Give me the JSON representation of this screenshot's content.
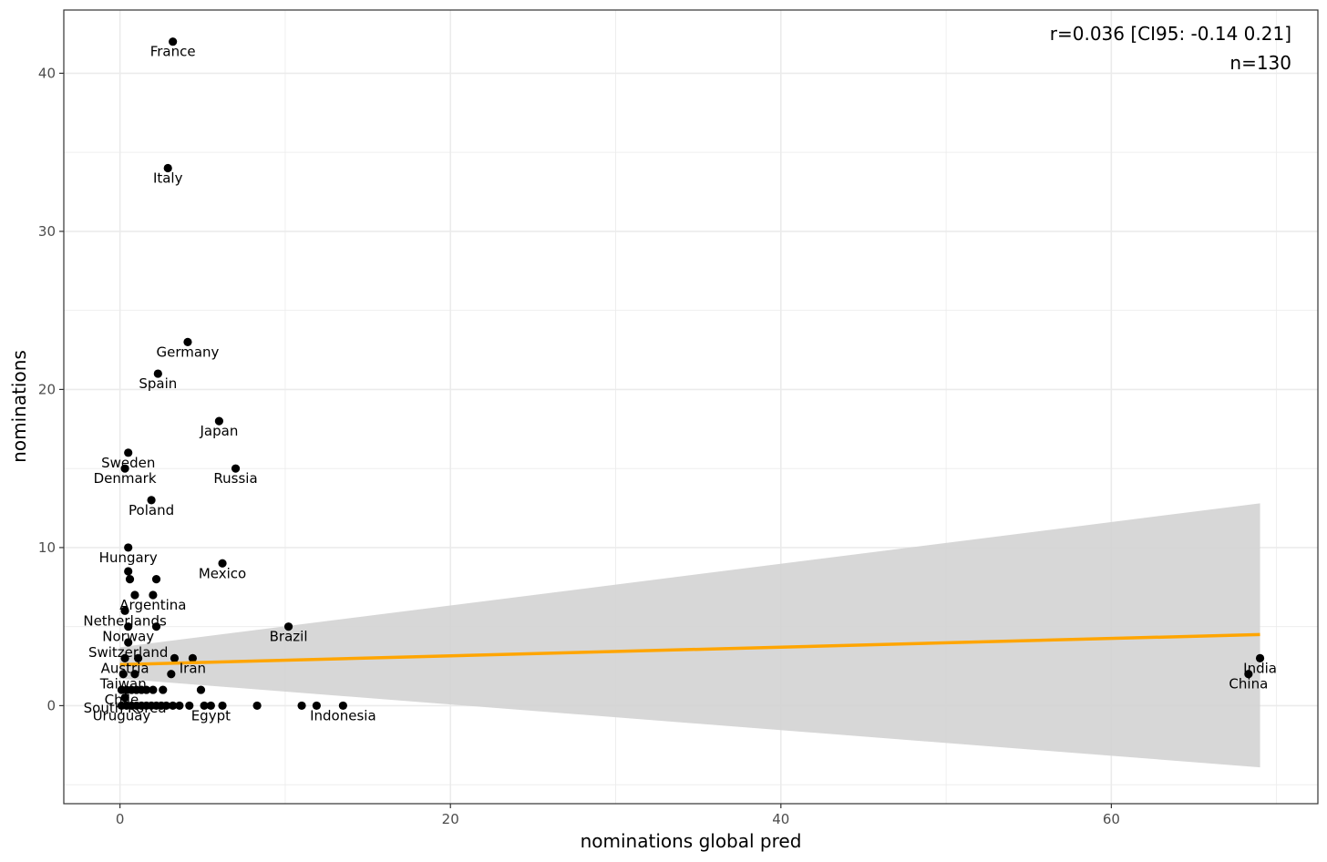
{
  "chart_data": {
    "type": "scatter",
    "xlabel": "nominations global pred",
    "ylabel": "nominations",
    "xlim": [
      -3.4,
      72.5
    ],
    "ylim": [
      -6.2,
      44.0
    ],
    "x_ticks": [
      0,
      20,
      40,
      60
    ],
    "y_ticks": [
      0,
      10,
      20,
      30,
      40
    ],
    "grid": true,
    "annotations": [
      "r=0.036 [CI95: -0.14 0.21]",
      "n=130"
    ],
    "regression": {
      "x": [
        0,
        69.0
      ],
      "y": [
        2.6,
        4.5
      ],
      "band_lower": [
        1.7,
        -3.9
      ],
      "band_upper": [
        3.7,
        12.8
      ],
      "line_color": "#ffa500",
      "band_color": "#d3d3d3"
    },
    "points": [
      {
        "x": 3.2,
        "y": 42,
        "label": "France"
      },
      {
        "x": 2.9,
        "y": 34,
        "label": "Italy"
      },
      {
        "x": 4.1,
        "y": 23,
        "label": "Germany"
      },
      {
        "x": 2.3,
        "y": 21,
        "label": "Spain"
      },
      {
        "x": 6.0,
        "y": 18,
        "label": "Japan"
      },
      {
        "x": 0.5,
        "y": 16,
        "label": "Sweden"
      },
      {
        "x": 0.3,
        "y": 15,
        "label": "Denmark"
      },
      {
        "x": 7.0,
        "y": 15,
        "label": "Russia"
      },
      {
        "x": 1.9,
        "y": 13,
        "label": "Poland"
      },
      {
        "x": 0.5,
        "y": 10,
        "label": "Hungary"
      },
      {
        "x": 6.2,
        "y": 9,
        "label": "Mexico"
      },
      {
        "x": 0.5,
        "y": 8.5,
        "label": ""
      },
      {
        "x": 0.6,
        "y": 8,
        "label": ""
      },
      {
        "x": 2.2,
        "y": 8,
        "label": ""
      },
      {
        "x": 2.0,
        "y": 7,
        "label": "Argentina"
      },
      {
        "x": 0.9,
        "y": 7,
        "label": ""
      },
      {
        "x": 0.3,
        "y": 6,
        "label": "Netherlands"
      },
      {
        "x": 0.5,
        "y": 5,
        "label": "Norway"
      },
      {
        "x": 2.2,
        "y": 5,
        "label": ""
      },
      {
        "x": 10.2,
        "y": 5,
        "label": "Brazil"
      },
      {
        "x": 0.5,
        "y": 4,
        "label": "Switzerland"
      },
      {
        "x": 0.3,
        "y": 3,
        "label": "Austria"
      },
      {
        "x": 1.1,
        "y": 3,
        "label": ""
      },
      {
        "x": 3.3,
        "y": 3,
        "label": ""
      },
      {
        "x": 4.4,
        "y": 3,
        "label": "Iran"
      },
      {
        "x": 69.0,
        "y": 3,
        "label": "India"
      },
      {
        "x": 0.2,
        "y": 2,
        "label": "Taiwan"
      },
      {
        "x": 3.1,
        "y": 2,
        "label": ""
      },
      {
        "x": 0.9,
        "y": 2,
        "label": ""
      },
      {
        "x": 68.3,
        "y": 2,
        "label": "China"
      },
      {
        "x": 0.1,
        "y": 1,
        "label": "Chile"
      },
      {
        "x": 0.4,
        "y": 1,
        "label": ""
      },
      {
        "x": 0.7,
        "y": 1,
        "label": ""
      },
      {
        "x": 1.0,
        "y": 1,
        "label": ""
      },
      {
        "x": 1.3,
        "y": 1,
        "label": ""
      },
      {
        "x": 1.6,
        "y": 1,
        "label": ""
      },
      {
        "x": 2.0,
        "y": 1,
        "label": ""
      },
      {
        "x": 2.6,
        "y": 1,
        "label": ""
      },
      {
        "x": 4.9,
        "y": 1,
        "label": ""
      },
      {
        "x": 0.3,
        "y": 0.5,
        "label": "South Korea"
      },
      {
        "x": 0.1,
        "y": 0,
        "label": "Uruguay"
      },
      {
        "x": 0.4,
        "y": 0,
        "label": ""
      },
      {
        "x": 0.7,
        "y": 0,
        "label": ""
      },
      {
        "x": 1.0,
        "y": 0,
        "label": ""
      },
      {
        "x": 1.3,
        "y": 0,
        "label": ""
      },
      {
        "x": 1.6,
        "y": 0,
        "label": ""
      },
      {
        "x": 1.9,
        "y": 0,
        "label": ""
      },
      {
        "x": 2.2,
        "y": 0,
        "label": ""
      },
      {
        "x": 2.5,
        "y": 0,
        "label": ""
      },
      {
        "x": 2.8,
        "y": 0,
        "label": ""
      },
      {
        "x": 3.2,
        "y": 0,
        "label": ""
      },
      {
        "x": 3.6,
        "y": 0,
        "label": ""
      },
      {
        "x": 4.2,
        "y": 0,
        "label": ""
      },
      {
        "x": 5.1,
        "y": 0,
        "label": ""
      },
      {
        "x": 5.5,
        "y": 0,
        "label": "Egypt"
      },
      {
        "x": 6.2,
        "y": 0,
        "label": ""
      },
      {
        "x": 8.3,
        "y": 0,
        "label": ""
      },
      {
        "x": 11.0,
        "y": 0,
        "label": ""
      },
      {
        "x": 11.9,
        "y": 0,
        "label": ""
      },
      {
        "x": 13.5,
        "y": 0,
        "label": "Indonesia"
      }
    ]
  }
}
